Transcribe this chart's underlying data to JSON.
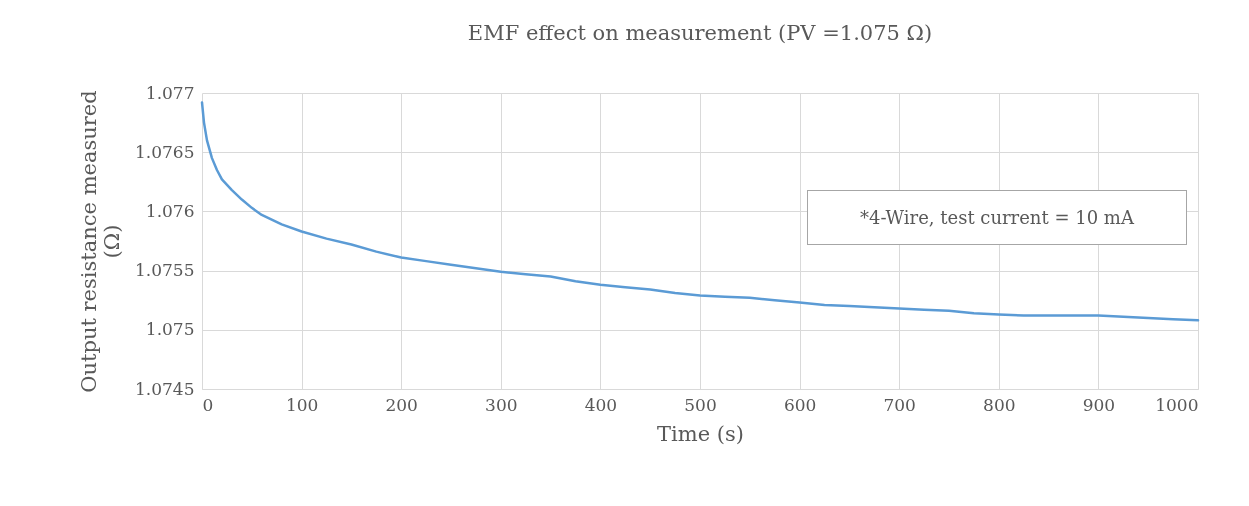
{
  "chart_data": {
    "type": "line",
    "title": "EMF effect on measurement (PV =1.075 Ω)",
    "xlabel": "Time (s)",
    "ylabel": "Output resistance measured (Ω)",
    "annotations": [
      "*4-Wire, test current = 10 mA"
    ],
    "xlim": [
      0,
      1000
    ],
    "xticks": [
      0,
      100,
      200,
      300,
      400,
      500,
      600,
      700,
      800,
      900,
      1000
    ],
    "ylim": [
      1.0745,
      1.077
    ],
    "yticks": [
      1.0745,
      1.075,
      1.0755,
      1.076,
      1.0765,
      1.077
    ],
    "grid": true,
    "legend": false,
    "marker": "none",
    "line_style": "solid",
    "series": [
      {
        "color": "#5b9bd5",
        "x": [
          0,
          2,
          5,
          10,
          15,
          20,
          30,
          40,
          50,
          60,
          80,
          100,
          125,
          150,
          175,
          200,
          225,
          250,
          275,
          300,
          325,
          350,
          375,
          400,
          425,
          450,
          475,
          500,
          525,
          550,
          575,
          600,
          625,
          650,
          675,
          700,
          725,
          750,
          775,
          800,
          825,
          850,
          875,
          900,
          925,
          950,
          975,
          1000
        ],
        "values": [
          1.07692,
          1.07675,
          1.0766,
          1.07645,
          1.07635,
          1.07627,
          1.07618,
          1.0761,
          1.07603,
          1.07597,
          1.07589,
          1.07583,
          1.07577,
          1.07572,
          1.07566,
          1.07561,
          1.07558,
          1.07555,
          1.07552,
          1.07549,
          1.07547,
          1.07545,
          1.07541,
          1.07538,
          1.07536,
          1.07534,
          1.07531,
          1.07529,
          1.07528,
          1.07527,
          1.07525,
          1.07523,
          1.07521,
          1.0752,
          1.07519,
          1.07518,
          1.07517,
          1.07516,
          1.07514,
          1.07513,
          1.07512,
          1.07512,
          1.07512,
          1.07512,
          1.07511,
          1.0751,
          1.07509,
          1.07508
        ]
      }
    ]
  }
}
